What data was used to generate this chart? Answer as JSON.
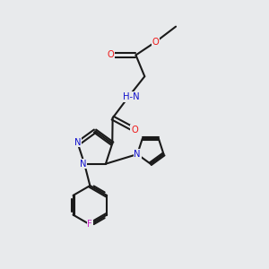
{
  "bg_color": "#e8eaec",
  "bond_color": "#1a1a1a",
  "atom_colors": {
    "O": "#ee1111",
    "N": "#1111cc",
    "F": "#cc22cc",
    "H": "#448888",
    "C": "#1a1a1a"
  },
  "font_size": 7.2,
  "bold_font_size": 7.2,
  "bond_width": 1.5,
  "figsize": [
    3.0,
    3.0
  ],
  "dpi": 100
}
